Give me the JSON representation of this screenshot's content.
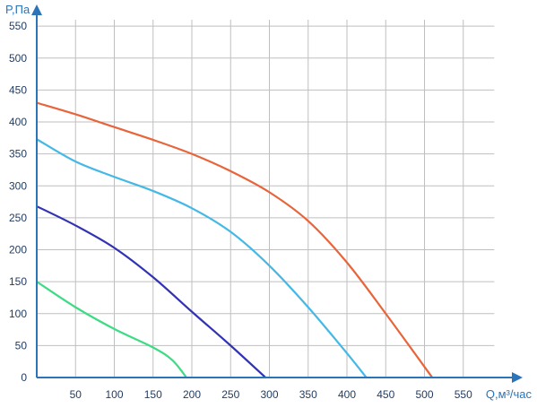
{
  "chart_data": {
    "type": "line",
    "xlabel": "Q,м³/час",
    "ylabel": "P,Па",
    "xlim": [
      0,
      600
    ],
    "ylim": [
      0,
      560
    ],
    "x_ticks": [
      50,
      100,
      150,
      200,
      250,
      300,
      350,
      400,
      450,
      500,
      550
    ],
    "y_ticks": [
      0,
      50,
      100,
      150,
      200,
      250,
      300,
      350,
      400,
      450,
      500,
      550
    ],
    "grid": true,
    "series": [
      {
        "color": "#3ddc84",
        "points": [
          [
            0,
            150
          ],
          [
            50,
            110
          ],
          [
            100,
            76
          ],
          [
            150,
            47
          ],
          [
            175,
            27
          ],
          [
            193,
            0
          ]
        ]
      },
      {
        "color": "#3232b4",
        "points": [
          [
            0,
            268
          ],
          [
            50,
            238
          ],
          [
            100,
            203
          ],
          [
            150,
            157
          ],
          [
            200,
            103
          ],
          [
            250,
            50
          ],
          [
            295,
            0
          ]
        ]
      },
      {
        "color": "#44b8e6",
        "points": [
          [
            0,
            373
          ],
          [
            50,
            338
          ],
          [
            100,
            314
          ],
          [
            150,
            292
          ],
          [
            200,
            265
          ],
          [
            250,
            228
          ],
          [
            300,
            175
          ],
          [
            350,
            110
          ],
          [
            400,
            38
          ],
          [
            425,
            0
          ]
        ]
      },
      {
        "color": "#e8643a",
        "points": [
          [
            0,
            430
          ],
          [
            50,
            412
          ],
          [
            100,
            392
          ],
          [
            150,
            372
          ],
          [
            200,
            350
          ],
          [
            250,
            323
          ],
          [
            300,
            290
          ],
          [
            350,
            245
          ],
          [
            400,
            180
          ],
          [
            450,
            100
          ],
          [
            510,
            0
          ]
        ]
      }
    ]
  }
}
